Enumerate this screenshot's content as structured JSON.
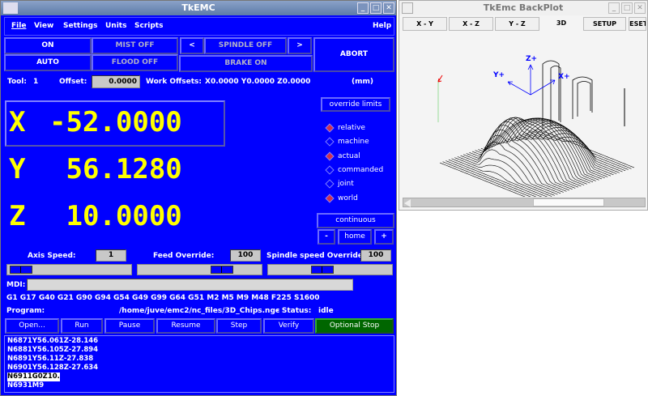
{
  "main": {
    "title": "TkEMC",
    "menu": [
      "File",
      "View",
      "Settings",
      "Units",
      "Scripts"
    ],
    "help": "Help",
    "buttons": {
      "on": "ON",
      "auto": "AUTO",
      "mist": "MIST OFF",
      "flood": "FLOOD OFF",
      "spindle_left": "<",
      "spindle": "SPINDLE OFF",
      "spindle_right": ">",
      "brake": "BRAKE ON",
      "abort": "ABORT"
    },
    "tool": {
      "label": "Tool:",
      "value": "1",
      "offset_label": "Offset:",
      "offset_value": "0.0000",
      "work_label": "Work Offsets:",
      "work_value": "X0.0000 Y0.0000 Z0.0000",
      "units": "(mm)"
    },
    "dro": [
      {
        "axis": "X",
        "value": "-52.0000"
      },
      {
        "axis": "Y",
        "value": " 56.1280"
      },
      {
        "axis": "Z",
        "value": " 10.0000"
      }
    ],
    "override_limits": "override limits",
    "coords": [
      {
        "label": "relative",
        "selected": true
      },
      {
        "label": "machine",
        "selected": false
      },
      {
        "label": "actual",
        "selected": true
      },
      {
        "label": "commanded",
        "selected": false
      },
      {
        "label": "joint",
        "selected": false
      },
      {
        "label": "world",
        "selected": true
      }
    ],
    "jog": {
      "mode": "continuous",
      "minus": "-",
      "home": "home",
      "plus": "+"
    },
    "speeds": {
      "axis_label": "Axis Speed:",
      "axis_value": "1",
      "feed_label": "Feed Override:",
      "feed_value": "100",
      "spindle_label": "Spindle speed Override:",
      "spindle_value": "100"
    },
    "sliders": {
      "axis_fraction": 0.02,
      "feed_fraction": 0.72,
      "spindle_fraction": 0.42
    },
    "mdi_label": "MDI:",
    "mdi_value": "",
    "gcodes": "G1 G17 G40 G21 G90 G94 G54 G49 G99 G64 G51 M2 M5 M9 M48 F225 S1600",
    "program_label": "Program:",
    "program_path": "/home/juve/emc2/nc_files/3D_Chips.ngc",
    "status_label": "-  Status:",
    "status_value": "idle",
    "actions": [
      "Open...",
      "Run",
      "Pause",
      "Resume",
      "Step",
      "Verify",
      "Optional Stop"
    ],
    "optional_stop_color": "#006600",
    "program_lines": [
      "N6871Y56.061Z-28.146",
      "N6881Y56.105Z-27.894",
      "N6891Y56.11Z-27.838",
      "N6901Y56.128Z-27.634",
      "N6911G0Z10.",
      "N6931M9"
    ],
    "highlight_line": 4
  },
  "backplot": {
    "title": "TkEmc BackPlot",
    "tabs": [
      "X - Y",
      "X - Z",
      "Y - Z",
      "3D",
      "SETUP",
      "RESET"
    ],
    "active_tab": "3D",
    "axis_labels": {
      "z": "Z+",
      "y": "Y+",
      "x": "X+"
    }
  },
  "colors": {
    "background": "#0000ff",
    "dro": "#ffff00",
    "radio_on": "#d03050"
  }
}
